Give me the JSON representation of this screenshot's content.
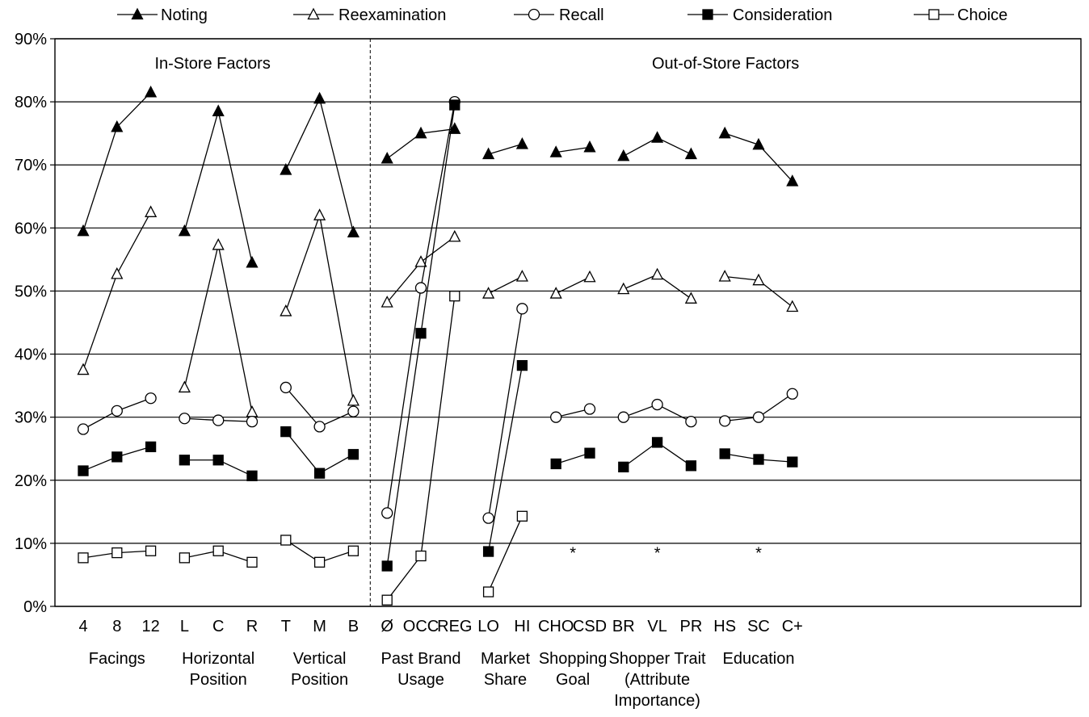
{
  "chart_data": {
    "type": "line",
    "categories": [
      "4",
      "8",
      "12",
      "L",
      "C",
      "R",
      "T",
      "M",
      "B",
      "Ø",
      "OCC",
      "REG",
      "LO",
      "HI",
      "CHO",
      "CSD",
      "BR",
      "VL",
      "PR",
      "HS",
      "SC",
      "C+"
    ],
    "groups": [
      {
        "label_lines": [
          "Facings"
        ],
        "range": [
          0,
          2
        ]
      },
      {
        "label_lines": [
          "Horizontal",
          "Position"
        ],
        "range": [
          3,
          5
        ]
      },
      {
        "label_lines": [
          "Vertical",
          "Position"
        ],
        "range": [
          6,
          8
        ]
      },
      {
        "label_lines": [
          "Past  Brand",
          "Usage"
        ],
        "range": [
          9,
          11
        ]
      },
      {
        "label_lines": [
          "Market",
          "Share"
        ],
        "range": [
          12,
          13
        ]
      },
      {
        "label_lines": [
          "Shopping",
          "Goal"
        ],
        "range": [
          14,
          15
        ]
      },
      {
        "label_lines": [
          "Shopper  Trait",
          "(Attribute",
          "Importance)"
        ],
        "range": [
          16,
          18
        ]
      },
      {
        "label_lines": [
          "Education"
        ],
        "range": [
          19,
          21
        ]
      }
    ],
    "sections": [
      "In-Store  Factors",
      "Out-of-Store  Factors"
    ],
    "section_divider_after_index": 8,
    "y_ticks": [
      "0%",
      "10%",
      "20%",
      "30%",
      "40%",
      "50%",
      "60%",
      "70%",
      "80%",
      "90%"
    ],
    "ylim": [
      0,
      90
    ],
    "grid": true,
    "legend_position": "top",
    "asterisk_label": "*",
    "asterisks": [
      {
        "x": 14.5,
        "y": 8.5
      },
      {
        "x": 17,
        "y": 8.5
      },
      {
        "x": 20,
        "y": 8.5
      }
    ],
    "series": [
      {
        "name": "Noting",
        "marker": "triangle",
        "filled": true,
        "values": [
          59.5,
          76,
          81.5,
          59.5,
          78.5,
          54.5,
          69.2,
          80.5,
          59.3,
          71,
          75,
          75.7,
          71.7,
          73.3,
          72,
          72.8,
          71.4,
          74.3,
          71.7,
          75,
          73.2,
          67.4
        ]
      },
      {
        "name": "Reexamination",
        "marker": "triangle",
        "filled": false,
        "values": [
          37.5,
          52.7,
          62.5,
          34.7,
          57.3,
          30.8,
          46.8,
          62,
          32.6,
          48.2,
          54.6,
          58.6,
          49.6,
          52.3,
          49.6,
          52.2,
          50.3,
          52.6,
          48.8,
          52.3,
          51.7,
          47.5
        ]
      },
      {
        "name": "Recall",
        "marker": "circle",
        "filled": false,
        "values": [
          28.1,
          31,
          33,
          29.8,
          29.5,
          29.3,
          34.7,
          28.5,
          30.9,
          14.8,
          50.5,
          80,
          14,
          47.2,
          null,
          null,
          null,
          null,
          null,
          null,
          null,
          null
        ],
        "values2": [
          null,
          null,
          null,
          null,
          null,
          null,
          null,
          null,
          null,
          null,
          null,
          null,
          null,
          null,
          30,
          31.3,
          30,
          32,
          29.3,
          29.4,
          30,
          33.7
        ]
      },
      {
        "name": "Consideration",
        "marker": "square",
        "filled": true,
        "values": [
          21.5,
          23.7,
          25.3,
          23.2,
          23.2,
          20.7,
          27.7,
          21.1,
          24.1,
          6.4,
          43.3,
          79.5,
          8.7,
          38.2,
          22.6,
          24.3,
          22.1,
          26,
          22.3,
          24.2,
          23.3,
          22.9
        ]
      },
      {
        "name": "Choice",
        "marker": "square",
        "filled": false,
        "values": [
          7.7,
          8.5,
          8.8,
          7.7,
          8.8,
          7,
          10.5,
          7,
          8.8,
          1,
          8,
          49.2,
          2.3,
          14.3,
          null,
          null,
          null,
          null,
          null,
          null,
          null,
          null
        ]
      }
    ],
    "line_breaks_after_index": [
      2,
      5,
      8,
      11,
      13,
      15,
      18
    ]
  }
}
